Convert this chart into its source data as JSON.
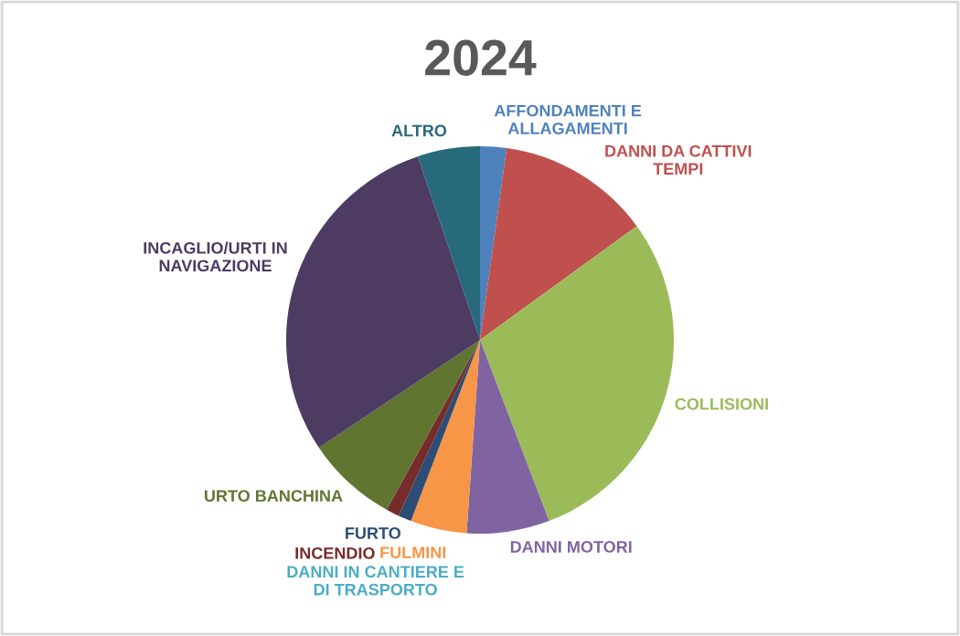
{
  "chart_data": {
    "type": "pie",
    "title": "2024",
    "categories": [
      "AFFONDAMENTI E\nALLAGAMENTI",
      "DANNI DA CATTIVI\nTEMPI",
      "COLLISIONI",
      "DANNI MOTORI",
      "DANNI IN CANTIERE E\nDI TRASPORTO",
      "FULMINI",
      "FURTO",
      "INCENDIO",
      "URTO BANCHINA",
      "INCAGLIO/URTI IN\nNAVIGAZIONE",
      "ALTRO"
    ],
    "values": [
      2.2,
      12.8,
      29.2,
      6.9,
      0,
      4.7,
      1.1,
      1.1,
      7.6,
      29.2,
      5.2
    ],
    "colors": [
      "#4f81bd",
      "#c0504d",
      "#9bbb59",
      "#8064a2",
      "#4bacc6",
      "#f79646",
      "#2c4d75",
      "#772c2a",
      "#5f7530",
      "#4d3b62",
      "#276a7c"
    ]
  }
}
